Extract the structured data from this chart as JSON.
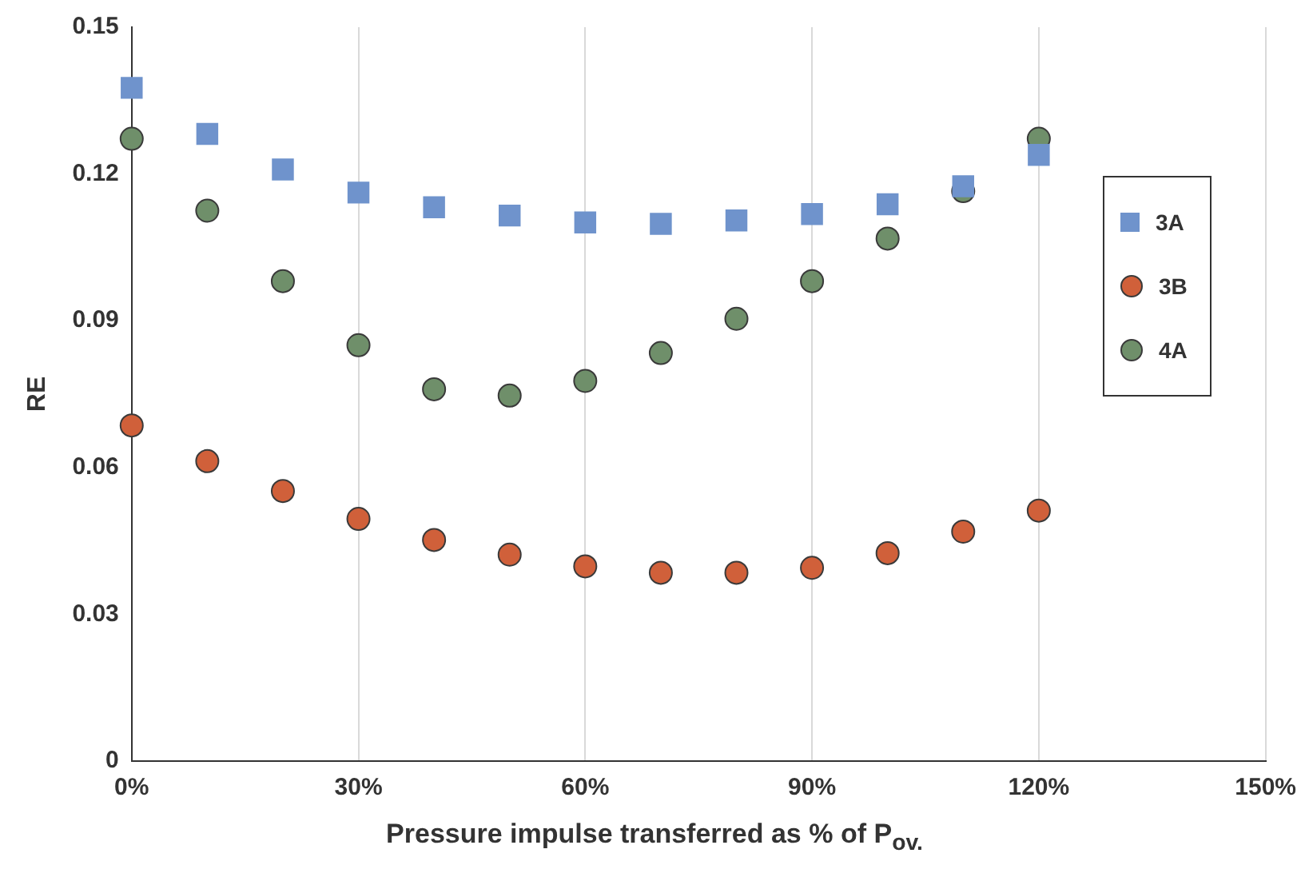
{
  "chart_data": {
    "type": "scatter",
    "xlabel": "Pressure impulse transferred as % of P$_{ov.}$",
    "ylabel": "RE",
    "x": [
      0,
      10,
      20,
      30,
      40,
      50,
      60,
      70,
      80,
      90,
      100,
      110,
      120
    ],
    "series": [
      {
        "name": "3A",
        "color": "#6f93cc",
        "marker": "square",
        "values": [
          0.1376,
          0.1282,
          0.1209,
          0.1162,
          0.1132,
          0.1115,
          0.1101,
          0.1098,
          0.1105,
          0.1118,
          0.1138,
          0.1175,
          0.1239
        ]
      },
      {
        "name": "3B",
        "color": "#d0603a",
        "marker": "circle",
        "values": [
          0.0686,
          0.0613,
          0.0552,
          0.0495,
          0.0452,
          0.0422,
          0.0398,
          0.0385,
          0.0385,
          0.0395,
          0.0425,
          0.0469,
          0.0512
        ]
      },
      {
        "name": "4A",
        "color": "#6f8f6a",
        "marker": "circle",
        "values": [
          0.1272,
          0.1125,
          0.0981,
          0.085,
          0.076,
          0.0747,
          0.0777,
          0.0834,
          0.0904,
          0.0981,
          0.1068,
          0.1165,
          0.1272
        ]
      }
    ],
    "xlim": [
      0,
      150
    ],
    "xticks": [
      {
        "value": 0,
        "label": "0%"
      },
      {
        "value": 30,
        "label": "30%"
      },
      {
        "value": 60,
        "label": "60%"
      },
      {
        "value": 90,
        "label": "90%"
      },
      {
        "value": 120,
        "label": "120%"
      },
      {
        "value": 150,
        "label": "150%"
      }
    ],
    "ylim": [
      0,
      0.15
    ],
    "yticks": [
      {
        "value": 0,
        "label": "0"
      },
      {
        "value": 0.03,
        "label": "0.03"
      },
      {
        "value": 0.06,
        "label": "0.06"
      },
      {
        "value": 0.09,
        "label": "0.09"
      },
      {
        "value": 0.12,
        "label": "0.12"
      },
      {
        "value": 0.15,
        "label": "0.15"
      }
    ],
    "legend": "right",
    "grid": "x"
  }
}
